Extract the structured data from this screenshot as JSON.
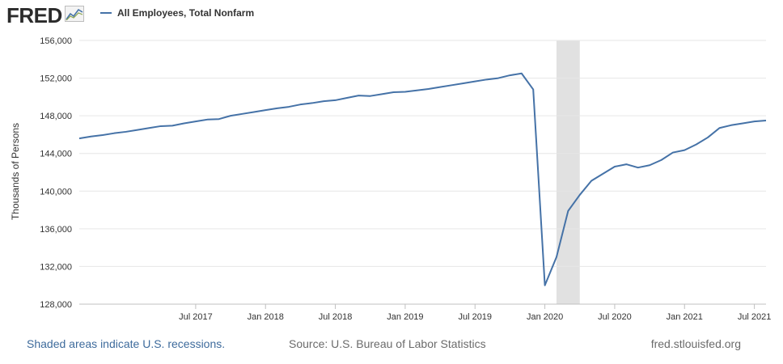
{
  "header": {
    "logo_text": "FRED",
    "logo_icon": "trend-chart-icon"
  },
  "footer": {
    "recession_note": "Shaded areas indicate U.S. recessions.",
    "source": "Source: U.S. Bureau of Labor Statistics",
    "site": "fred.stlouisfed.org"
  },
  "colors": {
    "series": "#4572a7",
    "recession": "#e1e1e1",
    "grid": "#e6e6e6",
    "axis_text": "#333333"
  },
  "chart_data": {
    "type": "line",
    "title": "",
    "xlabel": "",
    "ylabel": "Thousands of Persons",
    "ylim": [
      128000,
      156000
    ],
    "yticks": [
      128000,
      132000,
      136000,
      140000,
      144000,
      148000,
      152000,
      156000
    ],
    "ytick_labels": [
      "128,000",
      "132,000",
      "136,000",
      "140,000",
      "144,000",
      "148,000",
      "152,000",
      "156,000"
    ],
    "x_start": "2016-09",
    "x_end": "2021-08",
    "xticks": [
      "2017-07",
      "2018-01",
      "2018-07",
      "2019-01",
      "2019-07",
      "2020-01",
      "2020-07",
      "2021-01",
      "2021-07"
    ],
    "xtick_labels": [
      "Jul 2017",
      "Jan 2018",
      "Jul 2018",
      "Jan 2019",
      "Jul 2019",
      "Jan 2020",
      "Jul 2020",
      "Jan 2021",
      "Jul 2021"
    ],
    "grid": true,
    "legend": "top-left",
    "recessions": [
      {
        "start": "2020-02",
        "end": "2020-04"
      }
    ],
    "series": [
      {
        "name": "All Employees, Total Nonfarm",
        "x": [
          "2016-09",
          "2016-10",
          "2016-11",
          "2016-12",
          "2017-01",
          "2017-02",
          "2017-03",
          "2017-04",
          "2017-05",
          "2017-06",
          "2017-07",
          "2017-08",
          "2017-09",
          "2017-10",
          "2017-11",
          "2017-12",
          "2018-01",
          "2018-02",
          "2018-03",
          "2018-04",
          "2018-05",
          "2018-06",
          "2018-07",
          "2018-08",
          "2018-09",
          "2018-10",
          "2018-11",
          "2018-12",
          "2019-01",
          "2019-02",
          "2019-03",
          "2019-04",
          "2019-05",
          "2019-06",
          "2019-07",
          "2019-08",
          "2019-09",
          "2019-10",
          "2019-11",
          "2019-12",
          "2020-01",
          "2020-02",
          "2020-03",
          "2020-04",
          "2020-05",
          "2020-06",
          "2020-07",
          "2020-08",
          "2020-09",
          "2020-10",
          "2020-11",
          "2020-12",
          "2021-01",
          "2021-02",
          "2021-03",
          "2021-04",
          "2021-05",
          "2021-06",
          "2021-07",
          "2021-08"
        ],
        "values": [
          145600,
          145800,
          145950,
          146150,
          146300,
          146500,
          146700,
          146900,
          146950,
          147200,
          147400,
          147600,
          147650,
          148000,
          148200,
          148400,
          148600,
          148800,
          148950,
          149200,
          149350,
          149550,
          149650,
          149900,
          150150,
          150100,
          150300,
          150500,
          150550,
          150700,
          150850,
          151050,
          151250,
          151450,
          151650,
          151850,
          152000,
          152300,
          152500,
          150800,
          130000,
          133000,
          137900,
          139600,
          141100,
          141850,
          142600,
          142850,
          142500,
          142750,
          143300,
          144100,
          144350,
          144950,
          145700,
          146700,
          147000,
          147200,
          147400,
          147500
        ]
      }
    ]
  }
}
